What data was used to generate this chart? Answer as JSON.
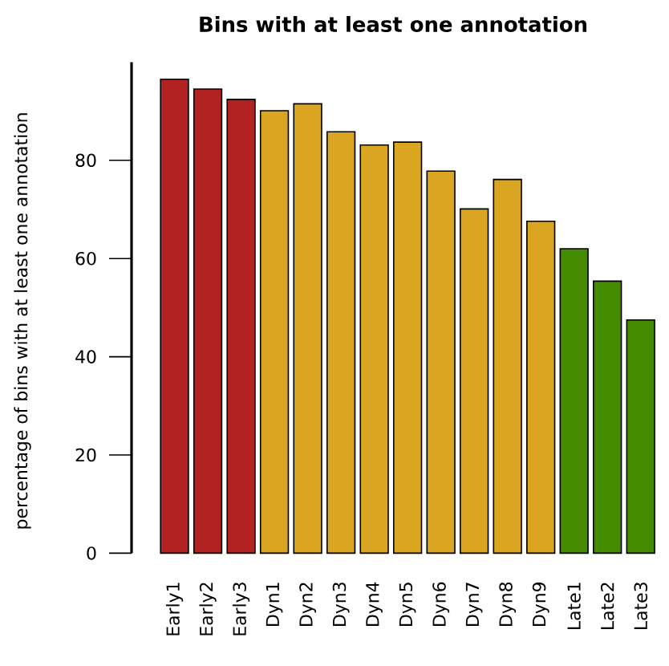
{
  "chart_data": {
    "type": "bar",
    "title": "Bins with at least one annotation",
    "ylabel": "percentage of bins with at least one annotation",
    "categories": [
      "Early1",
      "Early2",
      "Early3",
      "Dyn1",
      "Dyn2",
      "Dyn3",
      "Dyn4",
      "Dyn5",
      "Dyn6",
      "Dyn7",
      "Dyn8",
      "Dyn9",
      "Late1",
      "Late2",
      "Late3"
    ],
    "values": [
      96.5,
      94.5,
      92.4,
      90.1,
      91.5,
      85.8,
      83.1,
      83.7,
      77.8,
      70.1,
      76.1,
      67.6,
      62.0,
      55.4,
      47.5
    ],
    "colors": [
      "#b22222",
      "#b22222",
      "#b22222",
      "#daa520",
      "#daa520",
      "#daa520",
      "#daa520",
      "#daa520",
      "#daa520",
      "#daa520",
      "#daa520",
      "#daa520",
      "#458b00",
      "#458b00",
      "#458b00"
    ],
    "ylim": [
      0,
      100
    ],
    "yticks": [
      0,
      20,
      40,
      60,
      80
    ]
  }
}
